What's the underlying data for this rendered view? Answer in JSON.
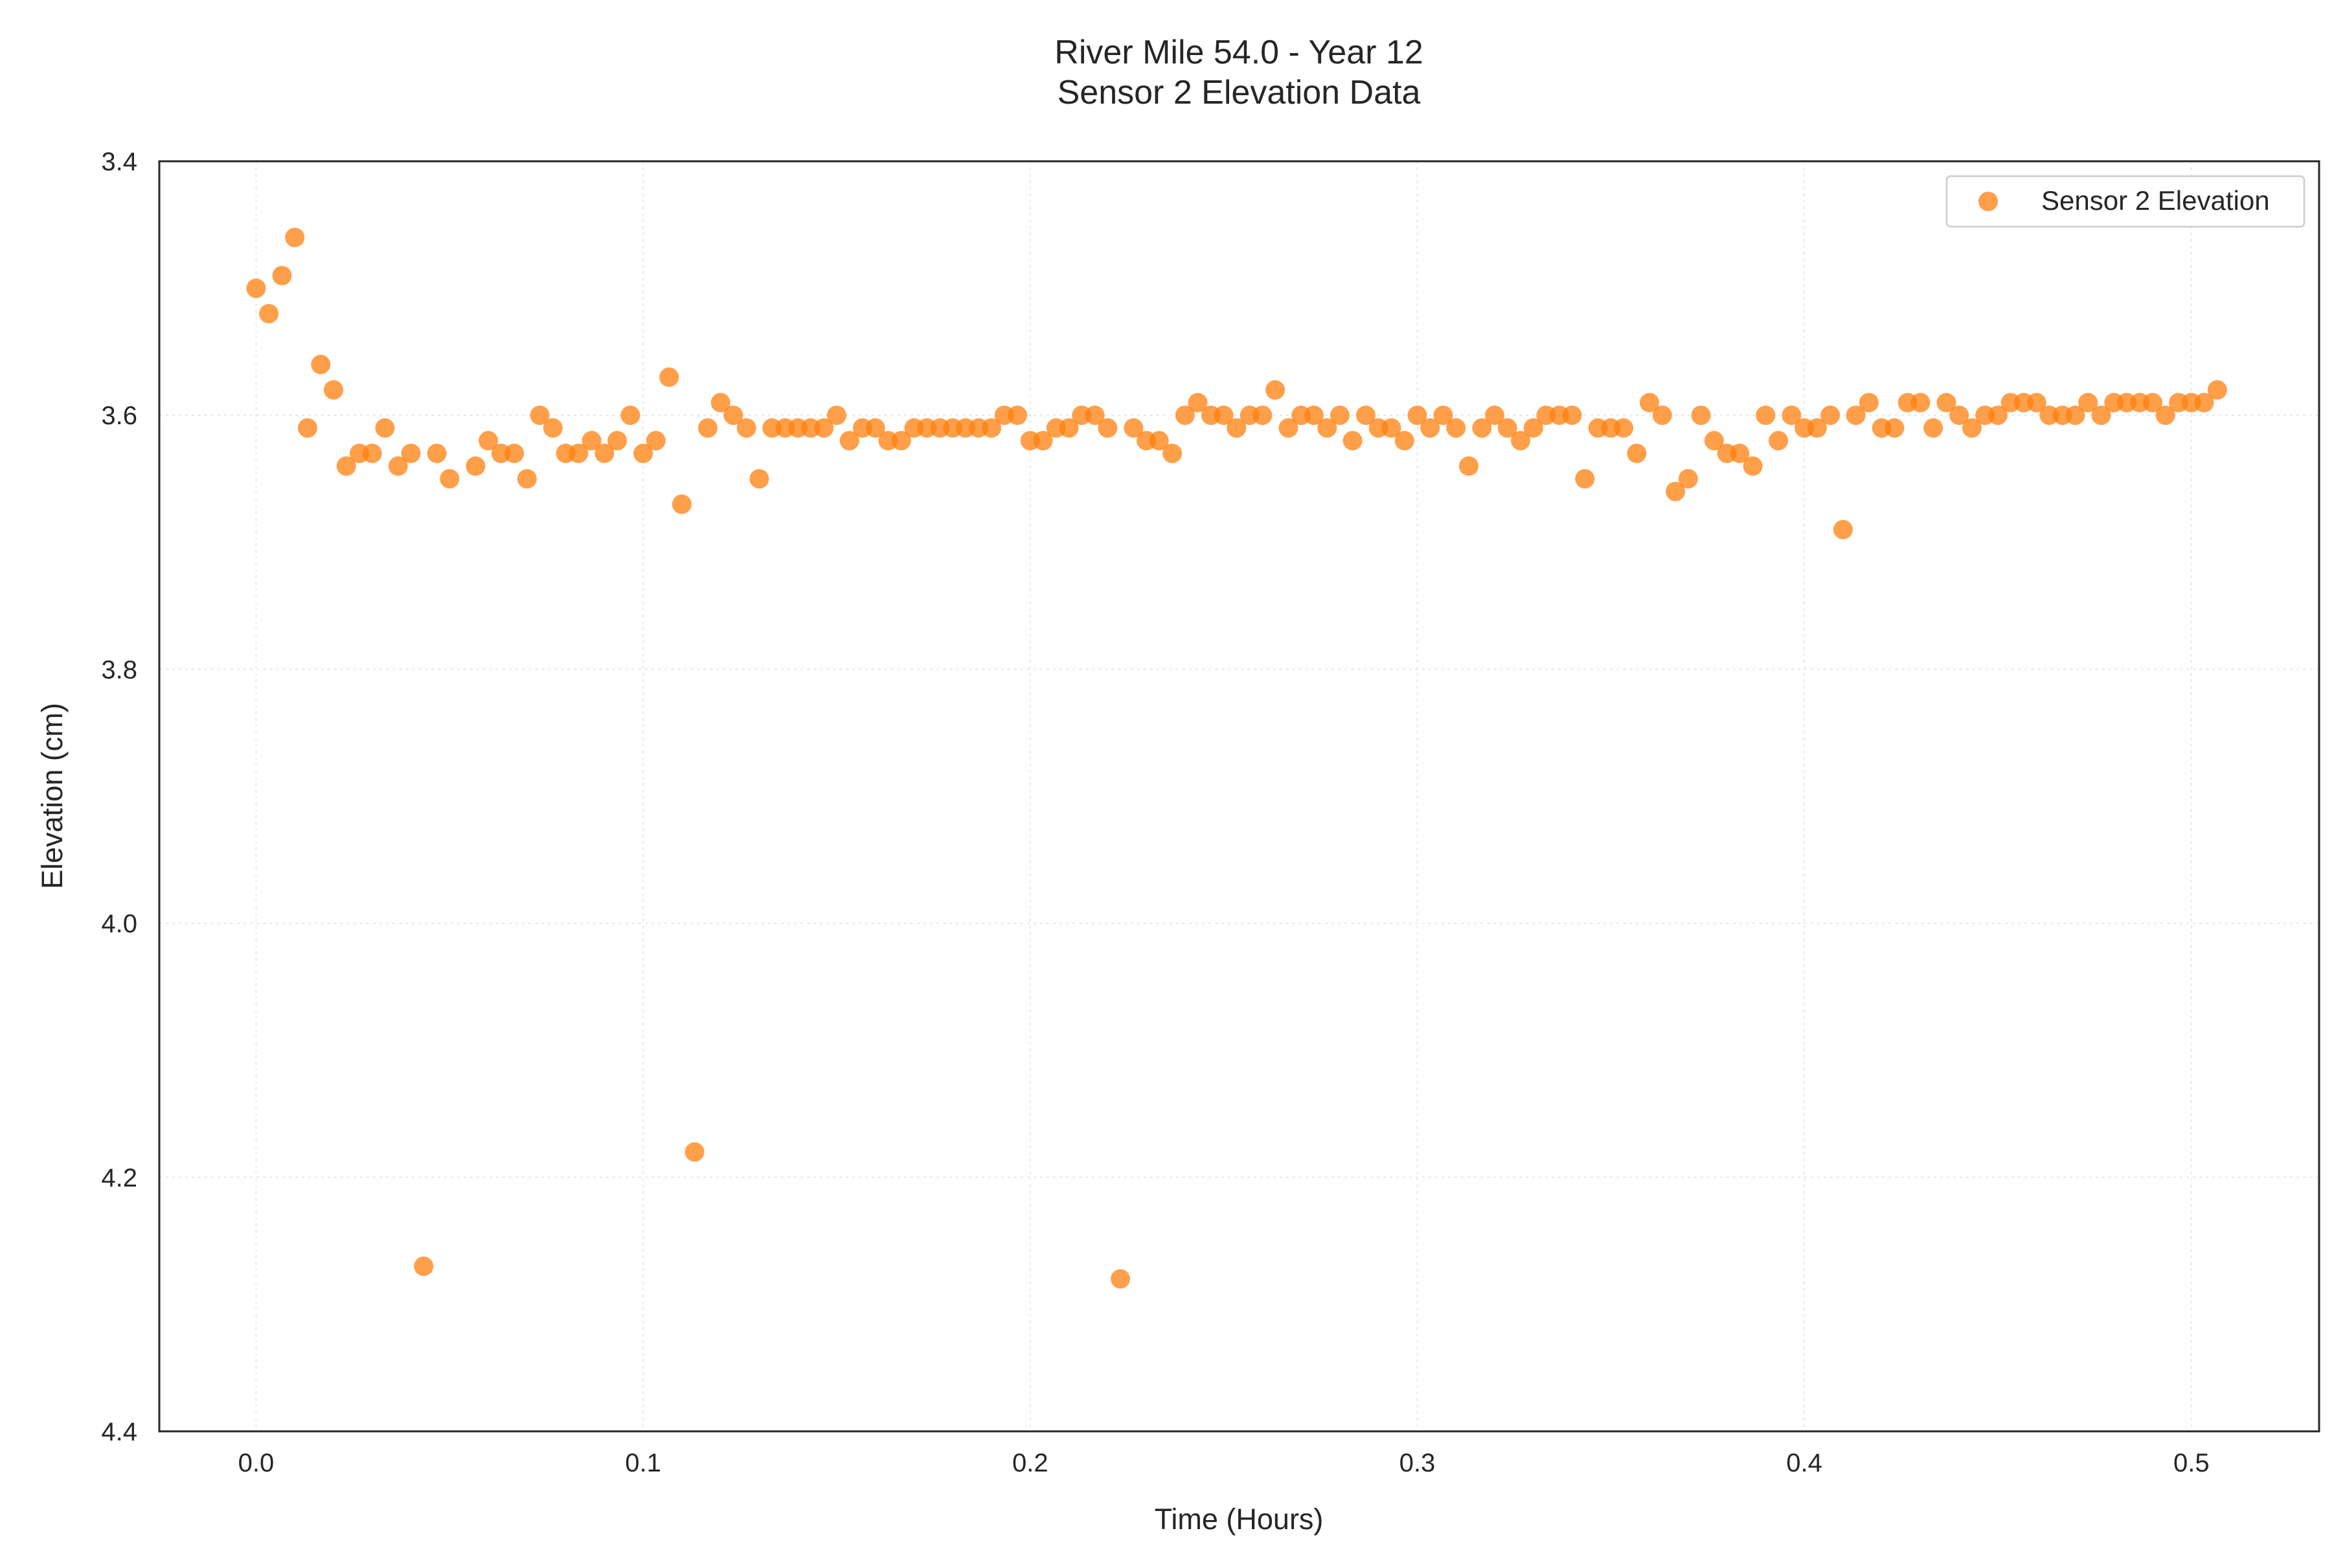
{
  "chart_data": {
    "type": "scatter",
    "title": "River Mile 54.0 - Year 12",
    "subtitle": "Sensor 2 Elevation Data",
    "xlabel": "Time (Hours)",
    "ylabel": "Elevation (cm)",
    "xlim": [
      -0.025,
      0.533
    ],
    "ylim": [
      3.4,
      4.4
    ],
    "y_inverted": true,
    "grid": true,
    "legend_position": "top-right",
    "x_ticks": [
      "0.0",
      "0.1",
      "0.2",
      "0.3",
      "0.4",
      "0.5"
    ],
    "y_ticks": [
      "3.4",
      "3.6",
      "3.8",
      "4.0",
      "4.2",
      "4.4"
    ],
    "colors": {
      "marker": "#ff7f0e",
      "axes": "#262626",
      "grid": "#e8e8e8"
    },
    "series": [
      {
        "name": "Sensor 2 Elevation",
        "points": [
          [
            0.0,
            3.5
          ],
          [
            0.0033,
            3.52
          ],
          [
            0.0067,
            3.49
          ],
          [
            0.01,
            3.46
          ],
          [
            0.0133,
            3.61
          ],
          [
            0.0167,
            3.56
          ],
          [
            0.02,
            3.58
          ],
          [
            0.0233,
            3.64
          ],
          [
            0.0267,
            3.63
          ],
          [
            0.03,
            3.63
          ],
          [
            0.0333,
            3.61
          ],
          [
            0.0367,
            3.64
          ],
          [
            0.04,
            3.63
          ],
          [
            0.0433,
            4.27
          ],
          [
            0.0467,
            3.63
          ],
          [
            0.05,
            3.65
          ],
          [
            0.0567,
            3.64
          ],
          [
            0.06,
            3.62
          ],
          [
            0.0633,
            3.63
          ],
          [
            0.0667,
            3.63
          ],
          [
            0.07,
            3.65
          ],
          [
            0.0733,
            3.6
          ],
          [
            0.0767,
            3.61
          ],
          [
            0.08,
            3.63
          ],
          [
            0.0833,
            3.63
          ],
          [
            0.0867,
            3.62
          ],
          [
            0.09,
            3.63
          ],
          [
            0.0933,
            3.62
          ],
          [
            0.0967,
            3.6
          ],
          [
            0.1,
            3.63
          ],
          [
            0.1033,
            3.62
          ],
          [
            0.1067,
            3.57
          ],
          [
            0.11,
            3.67
          ],
          [
            0.1133,
            4.18
          ],
          [
            0.1167,
            3.61
          ],
          [
            0.12,
            3.59
          ],
          [
            0.1233,
            3.6
          ],
          [
            0.1267,
            3.61
          ],
          [
            0.13,
            3.65
          ],
          [
            0.1333,
            3.61
          ],
          [
            0.1367,
            3.61
          ],
          [
            0.14,
            3.61
          ],
          [
            0.1433,
            3.61
          ],
          [
            0.1467,
            3.61
          ],
          [
            0.15,
            3.6
          ],
          [
            0.1533,
            3.62
          ],
          [
            0.1567,
            3.61
          ],
          [
            0.16,
            3.61
          ],
          [
            0.1633,
            3.62
          ],
          [
            0.1667,
            3.62
          ],
          [
            0.17,
            3.61
          ],
          [
            0.1733,
            3.61
          ],
          [
            0.1767,
            3.61
          ],
          [
            0.18,
            3.61
          ],
          [
            0.1833,
            3.61
          ],
          [
            0.1867,
            3.61
          ],
          [
            0.19,
            3.61
          ],
          [
            0.1933,
            3.6
          ],
          [
            0.1967,
            3.6
          ],
          [
            0.2,
            3.62
          ],
          [
            0.2033,
            3.62
          ],
          [
            0.2067,
            3.61
          ],
          [
            0.21,
            3.61
          ],
          [
            0.2133,
            3.6
          ],
          [
            0.2167,
            3.6
          ],
          [
            0.22,
            3.61
          ],
          [
            0.2233,
            4.28
          ],
          [
            0.2267,
            3.61
          ],
          [
            0.23,
            3.62
          ],
          [
            0.2333,
            3.62
          ],
          [
            0.2367,
            3.63
          ],
          [
            0.24,
            3.6
          ],
          [
            0.2433,
            3.59
          ],
          [
            0.2467,
            3.6
          ],
          [
            0.25,
            3.6
          ],
          [
            0.2533,
            3.61
          ],
          [
            0.2567,
            3.6
          ],
          [
            0.26,
            3.6
          ],
          [
            0.2633,
            3.58
          ],
          [
            0.2667,
            3.61
          ],
          [
            0.27,
            3.6
          ],
          [
            0.2733,
            3.6
          ],
          [
            0.2767,
            3.61
          ],
          [
            0.28,
            3.6
          ],
          [
            0.2833,
            3.62
          ],
          [
            0.2867,
            3.6
          ],
          [
            0.29,
            3.61
          ],
          [
            0.2933,
            3.61
          ],
          [
            0.2967,
            3.62
          ],
          [
            0.3,
            3.6
          ],
          [
            0.3033,
            3.61
          ],
          [
            0.3067,
            3.6
          ],
          [
            0.31,
            3.61
          ],
          [
            0.3133,
            3.64
          ],
          [
            0.3167,
            3.61
          ],
          [
            0.32,
            3.6
          ],
          [
            0.3233,
            3.61
          ],
          [
            0.3267,
            3.62
          ],
          [
            0.33,
            3.61
          ],
          [
            0.3333,
            3.6
          ],
          [
            0.3367,
            3.6
          ],
          [
            0.34,
            3.6
          ],
          [
            0.3433,
            3.65
          ],
          [
            0.3467,
            3.61
          ],
          [
            0.35,
            3.61
          ],
          [
            0.3533,
            3.61
          ],
          [
            0.3567,
            3.63
          ],
          [
            0.36,
            3.59
          ],
          [
            0.3633,
            3.6
          ],
          [
            0.3667,
            3.66
          ],
          [
            0.37,
            3.65
          ],
          [
            0.3733,
            3.6
          ],
          [
            0.3767,
            3.62
          ],
          [
            0.38,
            3.63
          ],
          [
            0.3833,
            3.63
          ],
          [
            0.3867,
            3.64
          ],
          [
            0.39,
            3.6
          ],
          [
            0.3933,
            3.62
          ],
          [
            0.3967,
            3.6
          ],
          [
            0.4,
            3.61
          ],
          [
            0.4033,
            3.61
          ],
          [
            0.4067,
            3.6
          ],
          [
            0.41,
            3.69
          ],
          [
            0.4133,
            3.6
          ],
          [
            0.4167,
            3.59
          ],
          [
            0.42,
            3.61
          ],
          [
            0.4233,
            3.61
          ],
          [
            0.4267,
            3.59
          ],
          [
            0.43,
            3.59
          ],
          [
            0.4333,
            3.61
          ],
          [
            0.4367,
            3.59
          ],
          [
            0.44,
            3.6
          ],
          [
            0.4433,
            3.61
          ],
          [
            0.4467,
            3.6
          ],
          [
            0.45,
            3.6
          ],
          [
            0.4533,
            3.59
          ],
          [
            0.4567,
            3.59
          ],
          [
            0.46,
            3.59
          ],
          [
            0.4633,
            3.6
          ],
          [
            0.4667,
            3.6
          ],
          [
            0.47,
            3.6
          ],
          [
            0.4733,
            3.59
          ],
          [
            0.4767,
            3.6
          ],
          [
            0.48,
            3.59
          ],
          [
            0.4833,
            3.59
          ],
          [
            0.4867,
            3.59
          ],
          [
            0.49,
            3.59
          ],
          [
            0.4933,
            3.6
          ],
          [
            0.4967,
            3.59
          ],
          [
            0.5,
            3.59
          ],
          [
            0.5033,
            3.59
          ],
          [
            0.5067,
            3.58
          ]
        ]
      }
    ]
  }
}
